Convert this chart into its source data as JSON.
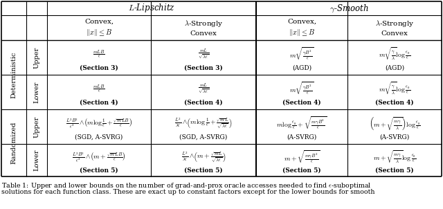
{
  "figsize": [
    6.4,
    3.02
  ],
  "dpi": 100,
  "caption": "Table 1: Upper and lower bounds on the number of grad-and-prox oracle accesses needed to find ε-suboptimal\nsolutions for each function class. These are exact up to constant factors except for the lower bounds for smooth",
  "top_headers": [
    "L\\text{-Lipschitz}",
    "\\gamma\\text{-Smooth}"
  ],
  "sub_headers": [
    "\\text{Convex,}\\\\\\|x\\| \\leq B",
    "\\lambda\\text{-Strongly}\\\\\\text{Convex}",
    "\\text{Convex,}\\\\\\|x\\| \\leq B",
    "\\lambda\\text{-Strongly}\\\\\\text{Convex}"
  ],
  "row_group_labels": [
    "Deterministic",
    "Randomized"
  ],
  "row_labels": [
    "Upper",
    "Lower",
    "Upper",
    "Lower"
  ],
  "cell_formulas": [
    [
      "\\frac{mLB}{\\epsilon}",
      "\\frac{mL}{\\sqrt{\\lambda\\epsilon}}",
      "m\\sqrt{\\frac{\\gamma B^2}{\\epsilon}}",
      "m\\sqrt{\\frac{\\gamma}{\\lambda}}\\log\\frac{\\epsilon_0}{\\epsilon}"
    ],
    [
      "\\frac{mLB}{\\epsilon}",
      "\\frac{mL}{\\sqrt{\\lambda\\epsilon}}",
      "m\\sqrt{\\frac{\\gamma B^2}{\\epsilon}}",
      "m\\sqrt{\\frac{\\gamma}{\\lambda}}\\log\\frac{\\epsilon_0}{\\epsilon}"
    ],
    [
      "\\frac{L^2B^2}{\\epsilon^2}\\wedge\\!\\left(m\\log\\frac{1}{\\epsilon}+\\frac{\\sqrt{m}LB}{\\epsilon}\\right)",
      "\\frac{L^2}{\\lambda\\epsilon}\\wedge\\!\\left(m\\log\\frac{1}{\\epsilon}+\\frac{\\sqrt{m}L}{\\sqrt{\\lambda\\epsilon}}\\right)",
      "m\\log\\frac{\\epsilon_0}{\\epsilon}+\\sqrt{\\frac{m\\gamma B^2}{\\epsilon}}",
      "\\left(m+\\sqrt{\\frac{m\\gamma}{\\lambda}}\\right)\\log\\frac{\\epsilon_0}{\\epsilon}"
    ],
    [
      "\\frac{L^2B^2}{\\epsilon^2}\\wedge\\!\\left(m+\\frac{\\sqrt{m}LB}{\\epsilon}\\right)",
      "\\frac{L^2}{\\lambda\\epsilon}\\wedge\\!\\left(m+\\frac{\\sqrt{m}L}{\\sqrt{\\lambda\\epsilon}}\\right)",
      "m+\\sqrt{\\frac{m\\gamma B^2}{\\epsilon}}",
      "m+\\sqrt{\\frac{m\\gamma}{\\lambda}}\\log\\frac{\\epsilon_0}{\\epsilon}"
    ]
  ],
  "cell_refs": [
    [
      "(Section 3)",
      "(Section 3)",
      "(AGD)",
      "(AGD)"
    ],
    [
      "(Section 4)",
      "(Section 4)",
      "(Section 4)",
      "(Section 4)"
    ],
    [
      "(SGD, A-SVRG)",
      "(SGD, A-SVRG)",
      "(A-SVRG)",
      "(A-SVRG)"
    ],
    [
      "(Section 5)",
      "(Section 5)",
      "(Section 5)",
      "(Section 5)"
    ]
  ],
  "cell_refs_bold": [
    [
      true,
      true,
      false,
      false
    ],
    [
      true,
      true,
      true,
      true
    ],
    [
      false,
      false,
      false,
      false
    ],
    [
      true,
      true,
      true,
      true
    ]
  ]
}
